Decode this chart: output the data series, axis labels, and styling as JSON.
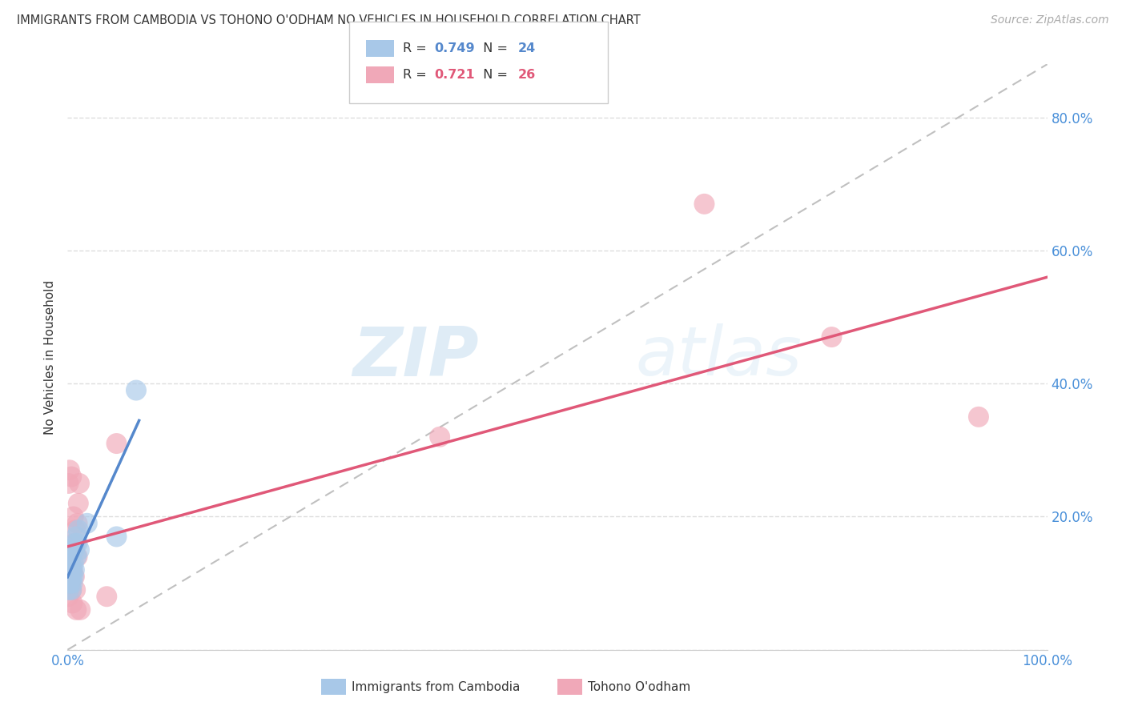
{
  "title": "IMMIGRANTS FROM CAMBODIA VS TOHONO O'ODHAM NO VEHICLES IN HOUSEHOLD CORRELATION CHART",
  "source": "Source: ZipAtlas.com",
  "tick_color": "#4a90d9",
  "ylabel": "No Vehicles in Household",
  "r_blue": 0.749,
  "n_blue": 24,
  "r_pink": 0.721,
  "n_pink": 26,
  "legend_label_blue": "Immigrants from Cambodia",
  "legend_label_pink": "Tohono O'odham",
  "xlim": [
    0.0,
    1.0
  ],
  "ylim": [
    0.0,
    0.88
  ],
  "xtick_labels": [
    "0.0%",
    "",
    "",
    "",
    "100.0%"
  ],
  "ytick_labels": [
    "",
    "20.0%",
    "40.0%",
    "60.0%",
    "80.0%"
  ],
  "background_color": "#ffffff",
  "grid_color": "#dddddd",
  "blue_color": "#a8c8e8",
  "pink_color": "#f0a8b8",
  "line_blue": "#5588cc",
  "line_pink": "#e05878",
  "diagonal_color": "#c0c0c0",
  "watermark_zip": "ZIP",
  "watermark_atlas": "atlas",
  "blue_scatter_x": [
    0.001,
    0.002,
    0.002,
    0.003,
    0.003,
    0.004,
    0.004,
    0.004,
    0.005,
    0.005,
    0.005,
    0.006,
    0.006,
    0.007,
    0.007,
    0.008,
    0.009,
    0.009,
    0.01,
    0.011,
    0.012,
    0.02,
    0.05,
    0.07
  ],
  "blue_scatter_y": [
    0.09,
    0.1,
    0.12,
    0.1,
    0.13,
    0.09,
    0.11,
    0.14,
    0.1,
    0.12,
    0.15,
    0.11,
    0.13,
    0.12,
    0.15,
    0.16,
    0.14,
    0.17,
    0.16,
    0.18,
    0.15,
    0.19,
    0.17,
    0.39
  ],
  "pink_scatter_x": [
    0.001,
    0.001,
    0.002,
    0.002,
    0.003,
    0.004,
    0.004,
    0.005,
    0.005,
    0.006,
    0.007,
    0.007,
    0.008,
    0.008,
    0.009,
    0.01,
    0.01,
    0.011,
    0.012,
    0.013,
    0.04,
    0.05,
    0.38,
    0.65,
    0.78,
    0.93
  ],
  "pink_scatter_y": [
    0.08,
    0.25,
    0.1,
    0.27,
    0.13,
    0.26,
    0.09,
    0.12,
    0.07,
    0.2,
    0.11,
    0.16,
    0.09,
    0.18,
    0.06,
    0.14,
    0.19,
    0.22,
    0.25,
    0.06,
    0.08,
    0.31,
    0.32,
    0.67,
    0.47,
    0.35
  ],
  "blue_line_x": [
    0.0,
    0.073
  ],
  "pink_line_x": [
    0.0,
    1.0
  ]
}
